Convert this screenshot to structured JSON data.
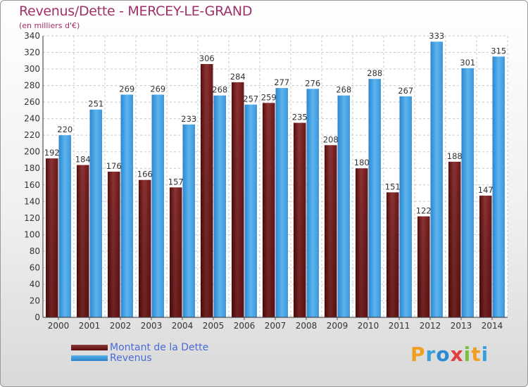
{
  "header": {
    "title": "Revenus/Dette - MERCEY-LE-GRAND",
    "subtitle": "(en milliers d'€)"
  },
  "chart_data": {
    "type": "bar",
    "title": "Revenus/Dette - MERCEY-LE-GRAND",
    "ylabel": "(en milliers d'€)",
    "xlabel": "",
    "ylim": [
      0,
      340
    ],
    "ytick_step": 20,
    "categories": [
      "2000",
      "2001",
      "2002",
      "2003",
      "2004",
      "2005",
      "2006",
      "2007",
      "2008",
      "2009",
      "2010",
      "2011",
      "2012",
      "2013",
      "2014"
    ],
    "series": [
      {
        "name": "Montant de la Dette",
        "color": "#7a1a1a",
        "values": [
          192,
          184,
          176,
          166,
          157,
          306,
          284,
          259,
          235,
          208,
          180,
          151,
          122,
          188,
          147
        ]
      },
      {
        "name": "Revenus",
        "color": "#3a9ae0",
        "values": [
          220,
          251,
          269,
          269,
          233,
          268,
          257,
          277,
          276,
          268,
          288,
          267,
          333,
          301,
          315
        ]
      }
    ],
    "grid": true,
    "legend": "bottom-left"
  },
  "legend": {
    "debt_label": "Montant de la Dette",
    "revenue_label": "Revenus"
  },
  "logo": {
    "letters": [
      "P",
      "r",
      "o",
      "x",
      "i",
      "t",
      "i"
    ]
  }
}
